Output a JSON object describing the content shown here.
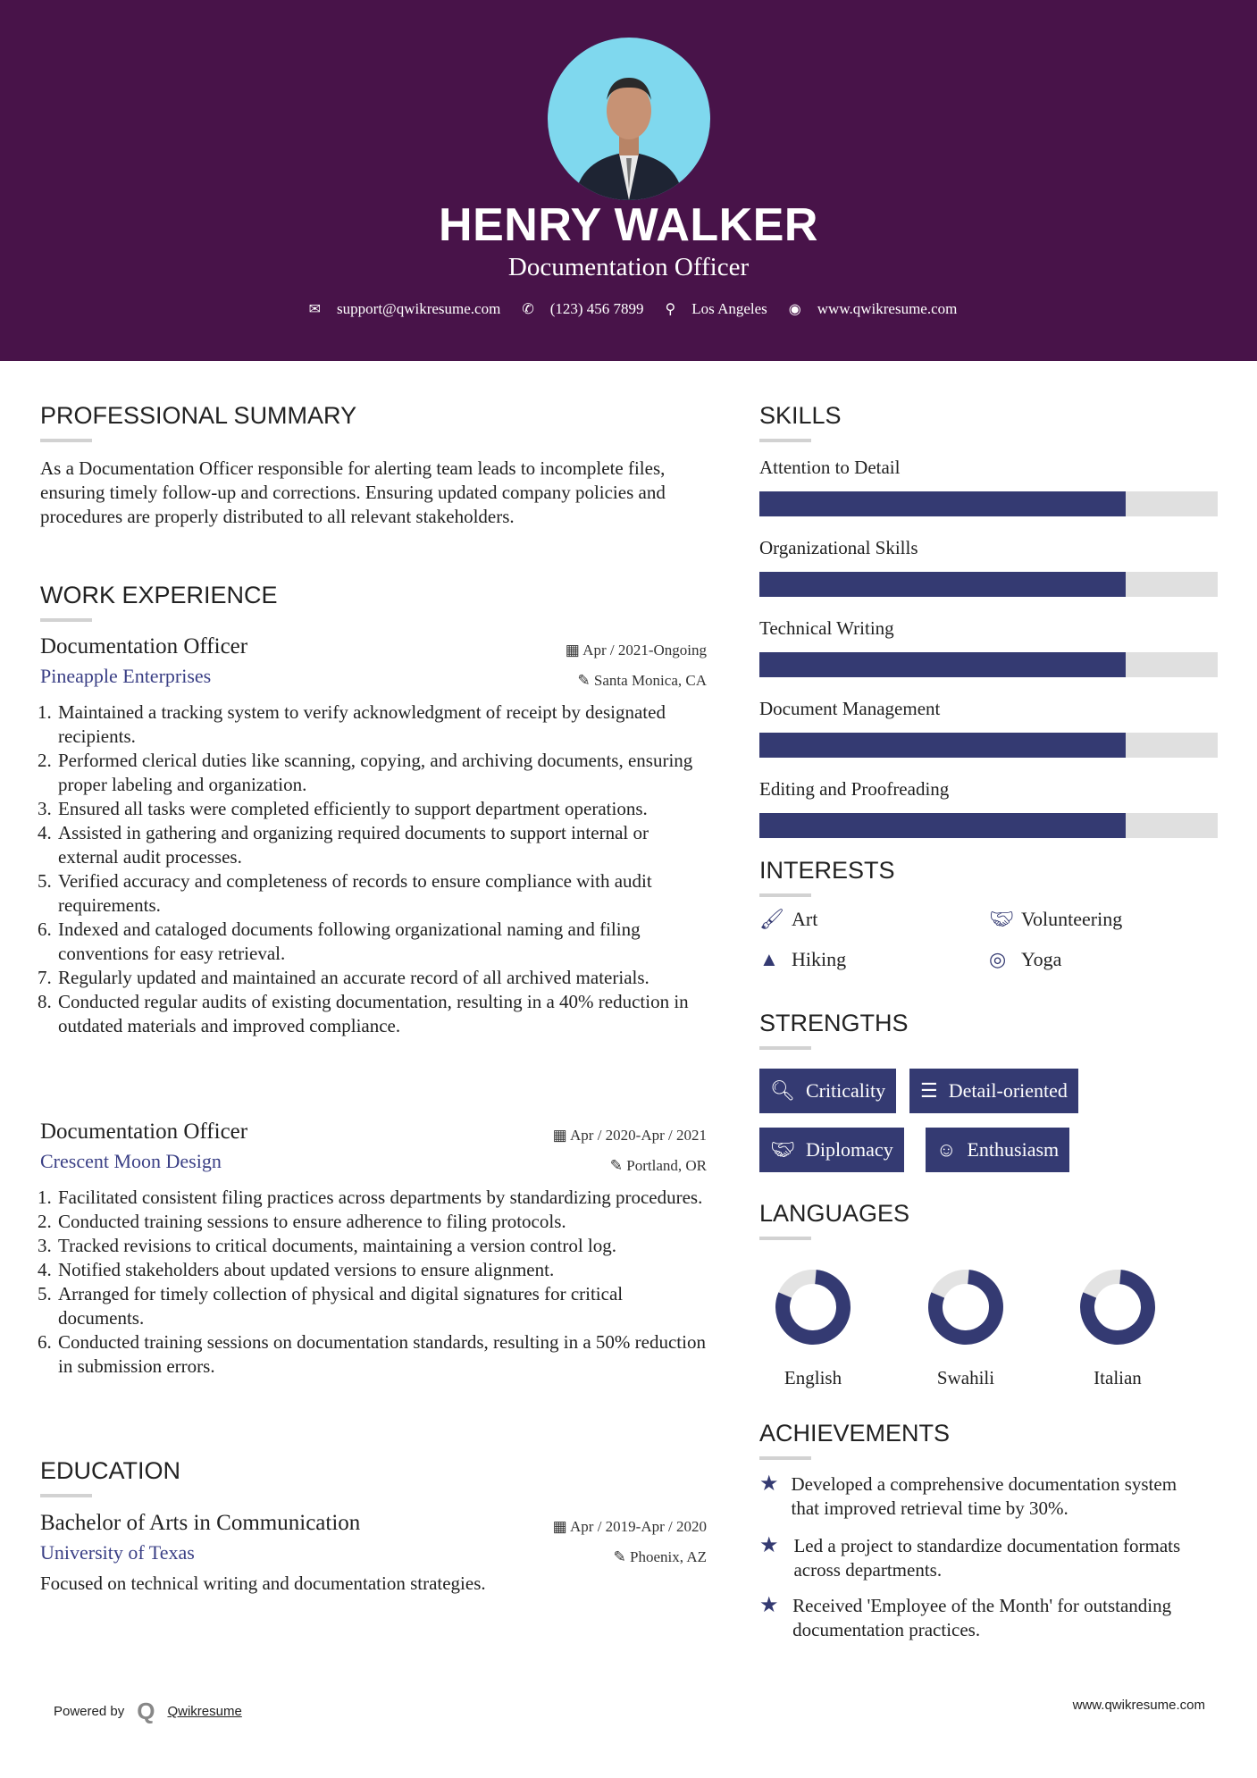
{
  "header": {
    "name": "HENRY WALKER",
    "title": "Documentation Officer",
    "email": "support@qwikresume.com",
    "phone": "(123) 456 7899",
    "location": "Los Angeles",
    "website": "www.qwikresume.com"
  },
  "summary": {
    "heading": "PROFESSIONAL SUMMARY",
    "text": "As a Documentation Officer responsible for alerting team leads to incomplete files, ensuring timely follow-up and corrections. Ensuring updated company policies and procedures are properly distributed to all relevant stakeholders."
  },
  "experience": {
    "heading": "WORK EXPERIENCE",
    "jobs": [
      {
        "title": "Documentation Officer",
        "company": "Pineapple Enterprises",
        "date": "Apr / 2021-Ongoing",
        "location": "Santa Monica, CA",
        "items": [
          "Maintained a tracking system to verify acknowledgment of receipt by designated recipients.",
          "Performed clerical duties like scanning, copying, and archiving documents, ensuring proper labeling and organization.",
          "Ensured all tasks were completed efficiently to support department operations.",
          "Assisted in gathering and organizing required documents to support internal or external audit processes.",
          "Verified accuracy and completeness of records to ensure compliance with audit requirements.",
          "Indexed and cataloged documents following organizational naming and filing conventions for easy retrieval.",
          "Regularly updated and maintained an accurate record of all archived materials.",
          "Conducted regular audits of existing documentation, resulting in a 40% reduction in outdated materials and improved compliance."
        ]
      },
      {
        "title": "Documentation Officer",
        "company": "Crescent Moon Design",
        "date": "Apr / 2020-Apr / 2021",
        "location": "Portland, OR",
        "items": [
          "Facilitated consistent filing practices across departments by standardizing procedures.",
          "Conducted training sessions to ensure adherence to filing protocols.",
          "Tracked revisions to critical documents, maintaining a version control log.",
          "Notified stakeholders about updated versions to ensure alignment.",
          "Arranged for timely collection of physical and digital signatures for critical documents.",
          "Conducted training sessions on documentation standards, resulting in a 50% reduction in submission errors."
        ]
      }
    ]
  },
  "education": {
    "heading": "EDUCATION",
    "degree": "Bachelor of Arts in Communication",
    "school": "University of Texas",
    "date": "Apr / 2019-Apr / 2020",
    "location": "Phoenix, AZ",
    "description": "Focused on technical writing and documentation strategies."
  },
  "skills": {
    "heading": "SKILLS",
    "items": [
      {
        "name": "Attention to Detail",
        "level": 0.8
      },
      {
        "name": "Organizational Skills",
        "level": 0.8
      },
      {
        "name": "Technical Writing",
        "level": 0.8
      },
      {
        "name": "Document Management",
        "level": 0.8
      },
      {
        "name": "Editing and Proofreading",
        "level": 0.8
      }
    ]
  },
  "interests": {
    "heading": "INTERESTS",
    "items": [
      {
        "label": "Art",
        "icon": "paintbrush-icon"
      },
      {
        "label": "Volunteering",
        "icon": "handshake-icon"
      },
      {
        "label": "Hiking",
        "icon": "tree-icon"
      },
      {
        "label": "Yoga",
        "icon": "lifering-icon"
      }
    ]
  },
  "strengths": {
    "heading": "STRENGTHS",
    "items": [
      {
        "label": "Criticality",
        "icon": "search-icon"
      },
      {
        "label": "Detail-oriented",
        "icon": "list-icon"
      },
      {
        "label": "Diplomacy",
        "icon": "handshake-icon"
      },
      {
        "label": "Enthusiasm",
        "icon": "smile-icon"
      }
    ]
  },
  "languages": {
    "heading": "LANGUAGES",
    "items": [
      {
        "name": "English",
        "level": 0.8
      },
      {
        "name": "Swahili",
        "level": 0.8
      },
      {
        "name": "Italian",
        "level": 0.8
      }
    ]
  },
  "achievements": {
    "heading": "ACHIEVEMENTS",
    "items": [
      "Developed a comprehensive documentation system that improved retrieval time by 30%.",
      "Led a project to standardize documentation formats across departments.",
      "Received 'Employee of the Month' for outstanding documentation practices."
    ]
  },
  "footer": {
    "powered": "Powered by",
    "brand": "Qwikresume",
    "url": "www.qwikresume.com"
  },
  "colors": {
    "header": "#481349",
    "accent": "#343a72",
    "company": "#3a3f85"
  }
}
